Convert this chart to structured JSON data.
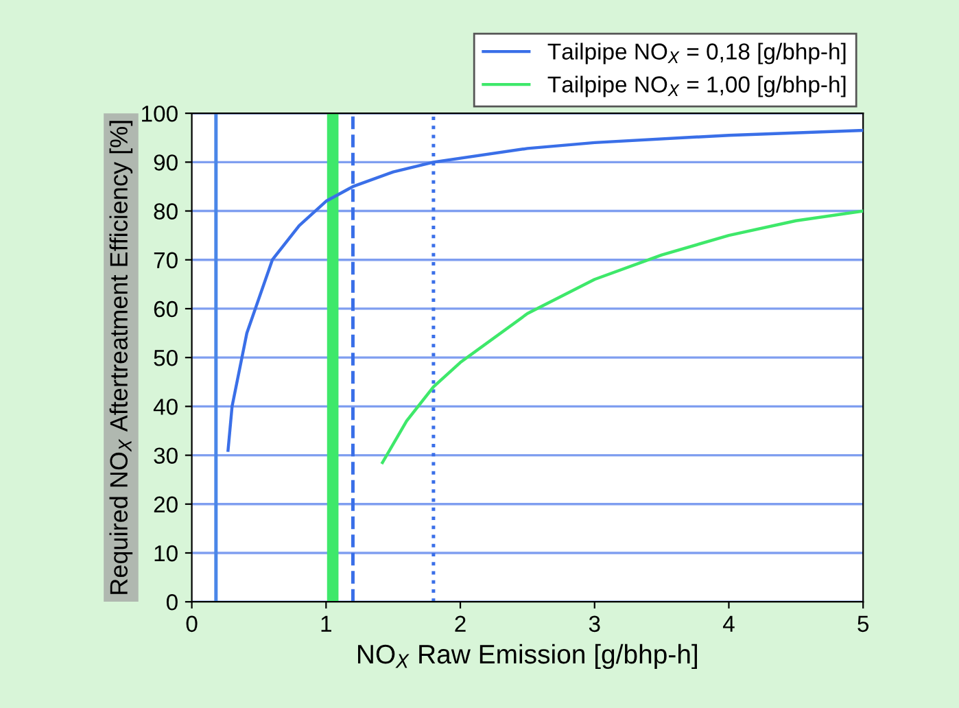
{
  "chart_data": {
    "type": "line",
    "xlabel": "NO$_{X}$ Raw Emission [g/bhp-h]",
    "ylabel": "Required NO$_{X}$ Aftertreatment Efficiency [%]",
    "series": [
      {
        "name": "Tailpipe NO$_{X}$ = 0,18 [g/bhp-h]",
        "color": "#3a6fe8",
        "x": [
          0.27,
          0.3,
          0.41,
          0.6,
          0.8,
          1.0,
          1.2,
          1.5,
          1.8,
          2.5,
          3,
          4,
          5
        ],
        "values": [
          31,
          40,
          55,
          70,
          77,
          82,
          85,
          88,
          90,
          92.8,
          94,
          95.5,
          96.5
        ]
      },
      {
        "name": "Tailpipe NO$_{X}$ = 1,00 [g/bhp-h]",
        "color": "#3ee86a",
        "x": [
          1.42,
          1.6,
          1.8,
          2,
          2.5,
          3,
          3.5,
          4,
          4.5,
          5
        ],
        "values": [
          28.5,
          37,
          44,
          49,
          59,
          66,
          71,
          75,
          78,
          80
        ]
      }
    ],
    "ref_lines": [
      {
        "axis": "x",
        "value": 0.18,
        "color": "#4a86e8",
        "line_style": "solid"
      },
      {
        "axis": "x",
        "value": 1.05,
        "color": "#3ee86a",
        "line_style": "solid"
      },
      {
        "axis": "x",
        "value": 1.2,
        "color": "#3a6fe8",
        "line_style": "dashed"
      },
      {
        "axis": "x",
        "value": 1.8,
        "color": "#3a6fe8",
        "line_style": "dotted"
      }
    ],
    "xlim": [
      0,
      5
    ],
    "xticks": [
      0,
      1,
      2,
      3,
      4,
      5
    ],
    "ylim": [
      0,
      100
    ],
    "yticks": [
      0,
      10,
      20,
      30,
      40,
      50,
      60,
      70,
      80,
      90,
      100
    ],
    "grid": "y",
    "legend": "top right",
    "marker": "none",
    "line_style": "solid"
  }
}
